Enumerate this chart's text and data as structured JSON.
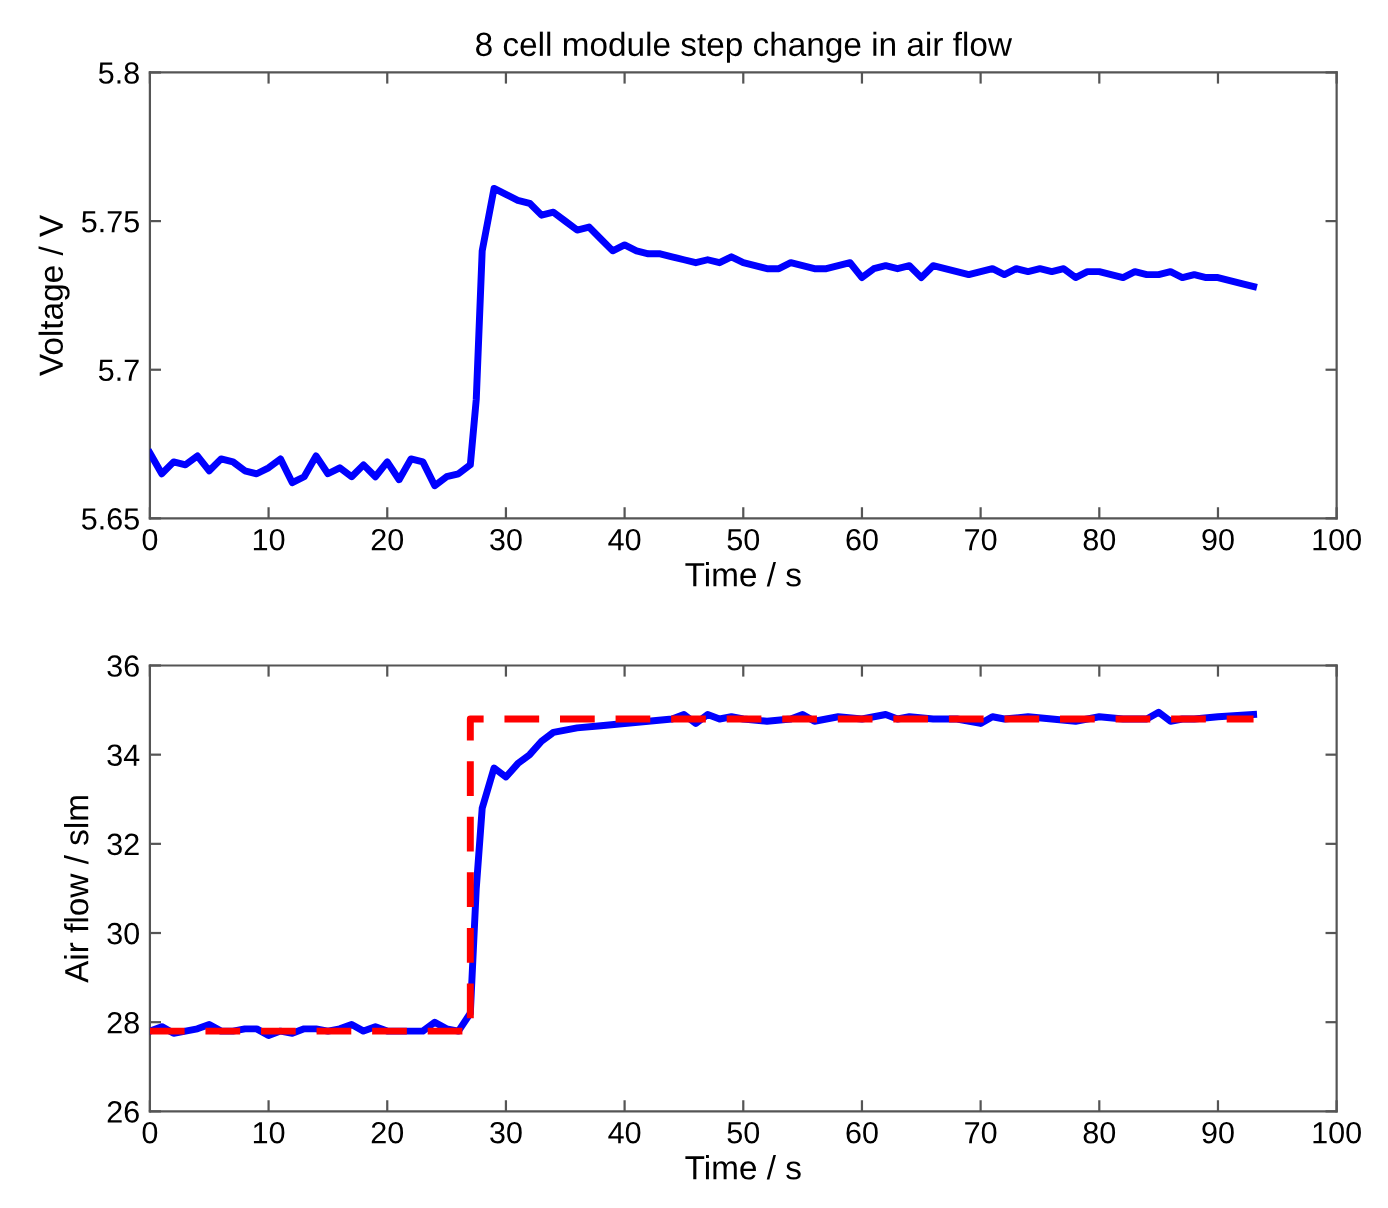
{
  "chart_data": [
    {
      "type": "line",
      "title": "8 cell module step change in air flow",
      "xlabel": "Time / s",
      "ylabel": "Voltage / V",
      "xlim": [
        0,
        100
      ],
      "xticks": [
        0,
        10,
        20,
        30,
        40,
        50,
        60,
        70,
        80,
        90,
        100
      ],
      "ylim": [
        5.65,
        5.8
      ],
      "yticks": [
        5.65,
        5.7,
        5.75,
        5.8
      ],
      "grid": false,
      "series": [
        {
          "color": "#0000ff",
          "line_style": "solid",
          "x": [
            0,
            1,
            2,
            3,
            4,
            5,
            6,
            7,
            8,
            9,
            10,
            11,
            12,
            13,
            14,
            15,
            16,
            17,
            18,
            19,
            20,
            21,
            22,
            23,
            24,
            25,
            26,
            27,
            27.5,
            28,
            29,
            30,
            31,
            32,
            33,
            34,
            35,
            36,
            37,
            38,
            39,
            40,
            41,
            42,
            43,
            44,
            45,
            46,
            47,
            48,
            49,
            50,
            51,
            52,
            53,
            54,
            55,
            56,
            57,
            58,
            59,
            60,
            61,
            62,
            63,
            64,
            65,
            66,
            67,
            68,
            69,
            70,
            71,
            72,
            73,
            74,
            75,
            76,
            77,
            78,
            79,
            80,
            81,
            82,
            83,
            84,
            85,
            86,
            87,
            88,
            89,
            90,
            91,
            92,
            93
          ],
          "values": [
            5.672,
            5.665,
            5.669,
            5.668,
            5.671,
            5.666,
            5.67,
            5.669,
            5.666,
            5.665,
            5.667,
            5.67,
            5.662,
            5.664,
            5.671,
            5.665,
            5.667,
            5.664,
            5.668,
            5.664,
            5.669,
            5.663,
            5.67,
            5.669,
            5.661,
            5.664,
            5.665,
            5.668,
            5.69,
            5.74,
            5.761,
            5.759,
            5.757,
            5.756,
            5.752,
            5.753,
            5.75,
            5.747,
            5.748,
            5.744,
            5.74,
            5.742,
            5.74,
            5.739,
            5.739,
            5.738,
            5.737,
            5.736,
            5.737,
            5.736,
            5.738,
            5.736,
            5.735,
            5.734,
            5.734,
            5.736,
            5.735,
            5.734,
            5.734,
            5.735,
            5.736,
            5.731,
            5.734,
            5.735,
            5.734,
            5.735,
            5.731,
            5.735,
            5.734,
            5.733,
            5.732,
            5.733,
            5.734,
            5.732,
            5.734,
            5.733,
            5.734,
            5.733,
            5.734,
            5.731,
            5.733,
            5.733,
            5.732,
            5.731,
            5.733,
            5.732,
            5.732,
            5.733,
            5.731,
            5.732,
            5.731,
            5.731,
            5.73,
            5.729,
            5.728
          ]
        }
      ]
    },
    {
      "type": "line",
      "xlabel": "Time / s",
      "ylabel": "Air flow / slm",
      "xlim": [
        0,
        100
      ],
      "xticks": [
        0,
        10,
        20,
        30,
        40,
        50,
        60,
        70,
        80,
        90,
        100
      ],
      "ylim": [
        26,
        36
      ],
      "yticks": [
        26,
        28,
        30,
        32,
        34,
        36
      ],
      "grid": false,
      "series": [
        {
          "color": "#0000ff",
          "line_style": "solid",
          "x": [
            0,
            1,
            2,
            3,
            4,
            5,
            6,
            7,
            8,
            9,
            10,
            11,
            12,
            13,
            14,
            15,
            16,
            17,
            18,
            19,
            20,
            21,
            22,
            23,
            24,
            25,
            26,
            27,
            27.5,
            28,
            29,
            30,
            31,
            32,
            33,
            34,
            35,
            36,
            38,
            40,
            42,
            44,
            45,
            46,
            47,
            48,
            49,
            50,
            52,
            54,
            55,
            56,
            57,
            58,
            60,
            62,
            63,
            64,
            66,
            68,
            70,
            71,
            72,
            74,
            76,
            78,
            80,
            82,
            84,
            85,
            86,
            87,
            88,
            90,
            93
          ],
          "values": [
            27.8,
            27.9,
            27.75,
            27.8,
            27.85,
            27.95,
            27.8,
            27.8,
            27.85,
            27.85,
            27.7,
            27.8,
            27.75,
            27.85,
            27.85,
            27.8,
            27.85,
            27.95,
            27.8,
            27.9,
            27.8,
            27.8,
            27.8,
            27.8,
            28.0,
            27.85,
            27.8,
            28.2,
            31.0,
            32.8,
            33.7,
            33.5,
            33.8,
            34.0,
            34.3,
            34.5,
            34.55,
            34.6,
            34.65,
            34.7,
            34.75,
            34.8,
            34.9,
            34.7,
            34.9,
            34.8,
            34.85,
            34.8,
            34.75,
            34.8,
            34.9,
            34.75,
            34.8,
            34.85,
            34.8,
            34.9,
            34.8,
            34.85,
            34.8,
            34.8,
            34.7,
            34.85,
            34.8,
            34.85,
            34.8,
            34.75,
            34.85,
            34.8,
            34.8,
            34.95,
            34.75,
            34.8,
            34.8,
            34.85,
            34.9
          ]
        },
        {
          "color": "#ff0000",
          "line_style": "dashed",
          "x": [
            0,
            27,
            27,
            93
          ],
          "values": [
            27.8,
            27.8,
            34.8,
            34.8
          ]
        }
      ]
    }
  ]
}
